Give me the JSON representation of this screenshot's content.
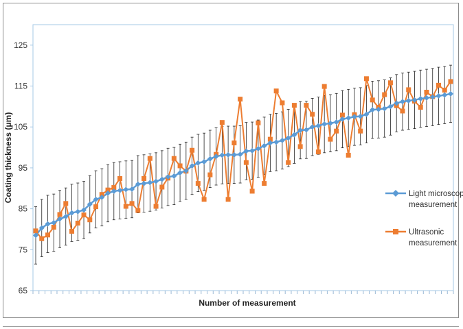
{
  "chart_data": {
    "type": "line",
    "xlabel": "Number of measurement",
    "ylabel": "Coating thickness (μm)",
    "ylim": [
      65,
      130
    ],
    "yticks": [
      65,
      75,
      85,
      95,
      105,
      115,
      125
    ],
    "grid": false,
    "legend_position": "right",
    "error_bar_half_width": 7,
    "colors": {
      "light": "#5b9bd5",
      "ultra": "#ed7d31",
      "error": "#222222"
    },
    "markers": {
      "light": "diamond",
      "ultra": "square"
    },
    "x": [
      1,
      2,
      3,
      4,
      5,
      6,
      7,
      8,
      9,
      10,
      11,
      12,
      13,
      14,
      15,
      16,
      17,
      18,
      19,
      20,
      21,
      22,
      23,
      24,
      25,
      26,
      27,
      28,
      29,
      30,
      31,
      32,
      33,
      34,
      35,
      36,
      37,
      38,
      39,
      40,
      41,
      42,
      43,
      44,
      45,
      46,
      47,
      48,
      49,
      50,
      51,
      52,
      53,
      54,
      55,
      56,
      57,
      58,
      59,
      60,
      61,
      62,
      63,
      64,
      65,
      66,
      67,
      68,
      69,
      70
    ],
    "series": [
      {
        "name": "Light microscope measurement",
        "values": [
          78.5,
          80.3,
          81.3,
          81.6,
          82.5,
          83.1,
          84.0,
          84.3,
          84.7,
          86.1,
          87.3,
          87.8,
          88.8,
          89.3,
          89.5,
          89.7,
          89.8,
          91.0,
          91.2,
          91.4,
          91.7,
          92.2,
          92.8,
          93.0,
          93.8,
          94.3,
          95.5,
          96.2,
          96.5,
          97.2,
          97.8,
          98.1,
          98.2,
          98.2,
          98.3,
          99.1,
          99.2,
          99.7,
          100.4,
          101.1,
          101.3,
          101.7,
          102.3,
          103.1,
          104.2,
          104.3,
          105.0,
          105.3,
          105.7,
          105.9,
          106.2,
          106.9,
          107.2,
          107.5,
          107.6,
          108.1,
          109.2,
          109.3,
          109.5,
          110.0,
          110.8,
          111.2,
          111.4,
          111.6,
          111.9,
          112.1,
          112.3,
          112.6,
          112.8,
          113.1
        ]
      },
      {
        "name": "Ultrasonic measurement",
        "values": [
          79.6,
          77.7,
          78.6,
          80.5,
          83.6,
          86.3,
          79.5,
          81.5,
          83.5,
          82.3,
          85.5,
          88.5,
          89.6,
          90.2,
          92.4,
          85.6,
          86.3,
          84.6,
          92.4,
          97.3,
          85.6,
          90.3,
          92.5,
          97.3,
          95.5,
          94.2,
          99.3,
          91.2,
          87.3,
          93.3,
          98.3,
          106.1,
          87.3,
          101.1,
          111.8,
          96.3,
          89.3,
          106.0,
          91.2,
          102.0,
          113.8,
          110.9,
          96.3,
          110.3,
          100.2,
          110.3,
          108.1,
          98.9,
          114.9,
          102.0,
          104.0,
          107.9,
          98.1,
          108.0,
          104.0,
          116.8,
          111.6,
          109.8,
          112.9,
          115.8,
          110.2,
          108.9,
          114.1,
          111.3,
          109.8,
          113.5,
          112.4,
          115.2,
          114.0,
          116.1
        ]
      }
    ]
  }
}
